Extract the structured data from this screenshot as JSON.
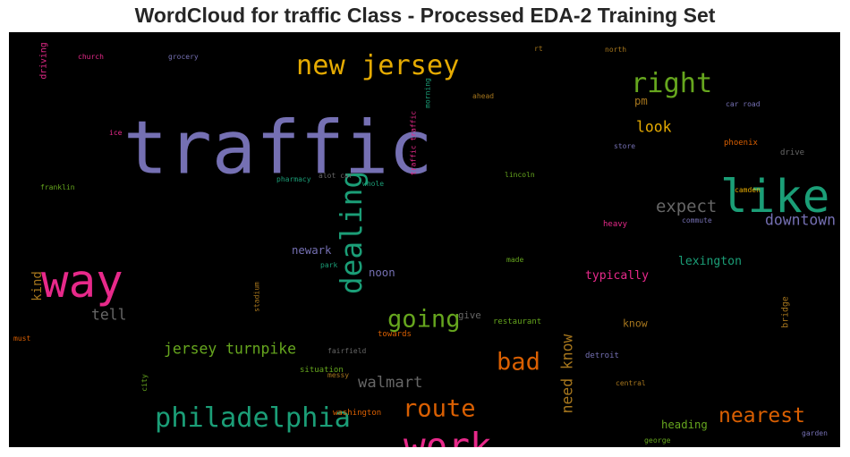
{
  "chart_data": {
    "type": "wordcloud",
    "title": "WordCloud for traffic Class - Processed EDA-2 Training Set",
    "background": "#000000",
    "words": [
      {
        "text": "traffic",
        "weight": 1.0,
        "color": "#7570b3",
        "vertical": false
      },
      {
        "text": "way",
        "weight": 0.62,
        "color": "#e7298a",
        "vertical": false
      },
      {
        "text": "like",
        "weight": 0.62,
        "color": "#1b9e77",
        "vertical": false
      },
      {
        "text": "work",
        "weight": 0.5,
        "color": "#e7298a",
        "vertical": false
      },
      {
        "text": "new jersey",
        "weight": 0.37,
        "color": "#e6ab02",
        "vertical": false
      },
      {
        "text": "right",
        "weight": 0.37,
        "color": "#66a61e",
        "vertical": false
      },
      {
        "text": "dealing",
        "weight": 0.4,
        "color": "#1b9e77",
        "vertical": true
      },
      {
        "text": "philadelphia",
        "weight": 0.37,
        "color": "#1b9e77",
        "vertical": false
      },
      {
        "text": "going",
        "weight": 0.33,
        "color": "#66a61e",
        "vertical": false
      },
      {
        "text": "route",
        "weight": 0.33,
        "color": "#d95f02",
        "vertical": false
      },
      {
        "text": "bad",
        "weight": 0.33,
        "color": "#d95f02",
        "vertical": false
      },
      {
        "text": "nearest",
        "weight": 0.28,
        "color": "#d95f02",
        "vertical": false
      },
      {
        "text": "expect",
        "weight": 0.23,
        "color": "#666666",
        "vertical": false
      },
      {
        "text": "downtown",
        "weight": 0.2,
        "color": "#7570b3",
        "vertical": false
      },
      {
        "text": "look",
        "weight": 0.2,
        "color": "#e6ab02",
        "vertical": false
      },
      {
        "text": "walmart",
        "weight": 0.21,
        "color": "#666666",
        "vertical": false
      },
      {
        "text": "jersey turnpike",
        "weight": 0.2,
        "color": "#66a61e",
        "vertical": false
      },
      {
        "text": "tell",
        "weight": 0.2,
        "color": "#666666",
        "vertical": false
      },
      {
        "text": "need know",
        "weight": 0.2,
        "color": "#a6761d",
        "vertical": true
      },
      {
        "text": "kind",
        "weight": 0.17,
        "color": "#a6761d",
        "vertical": true
      },
      {
        "text": "lexington",
        "weight": 0.16,
        "color": "#1b9e77",
        "vertical": false
      },
      {
        "text": "typically",
        "weight": 0.16,
        "color": "#e7298a",
        "vertical": false
      },
      {
        "text": "newark",
        "weight": 0.15,
        "color": "#7570b3",
        "vertical": false
      },
      {
        "text": "noon",
        "weight": 0.15,
        "color": "#7570b3",
        "vertical": false
      },
      {
        "text": "heading",
        "weight": 0.15,
        "color": "#66a61e",
        "vertical": false
      },
      {
        "text": "pm",
        "weight": 0.15,
        "color": "#a6761d",
        "vertical": false
      },
      {
        "text": "know",
        "weight": 0.14,
        "color": "#a6761d",
        "vertical": false
      },
      {
        "text": "give",
        "weight": 0.13,
        "color": "#666666",
        "vertical": false
      },
      {
        "text": "driving",
        "weight": 0.12,
        "color": "#e7298a",
        "vertical": true
      },
      {
        "text": "bridge",
        "weight": 0.12,
        "color": "#a6761d",
        "vertical": true
      },
      {
        "text": "phoenix",
        "weight": 0.11,
        "color": "#d95f02",
        "vertical": false
      },
      {
        "text": "heavy",
        "weight": 0.11,
        "color": "#e7298a",
        "vertical": false
      },
      {
        "text": "drive",
        "weight": 0.11,
        "color": "#666666",
        "vertical": false
      },
      {
        "text": "detroit",
        "weight": 0.11,
        "color": "#7570b3",
        "vertical": false
      },
      {
        "text": "restaurant",
        "weight": 0.11,
        "color": "#66a61e",
        "vertical": false
      },
      {
        "text": "towards",
        "weight": 0.11,
        "color": "#d95f02",
        "vertical": false
      },
      {
        "text": "situation",
        "weight": 0.11,
        "color": "#66a61e",
        "vertical": false
      },
      {
        "text": "washington",
        "weight": 0.11,
        "color": "#d95f02",
        "vertical": false
      },
      {
        "text": "george",
        "weight": 0.1,
        "color": "#66a61e",
        "vertical": false
      },
      {
        "text": "city",
        "weight": 0.1,
        "color": "#66a61e",
        "vertical": true
      },
      {
        "text": "traffic traffic",
        "weight": 0.08,
        "color": "#e7298a",
        "vertical": true
      },
      {
        "text": "morning",
        "weight": 0.07,
        "color": "#1b9e77",
        "vertical": true
      },
      {
        "text": "rt",
        "weight": 0.09,
        "color": "#a6761d",
        "vertical": false
      },
      {
        "text": "church",
        "weight": 0.07,
        "color": "#e7298a",
        "vertical": false
      },
      {
        "text": "grocery",
        "weight": 0.07,
        "color": "#7570b3",
        "vertical": false
      },
      {
        "text": "north",
        "weight": 0.07,
        "color": "#a6761d",
        "vertical": false
      },
      {
        "text": "ahead",
        "weight": 0.07,
        "color": "#a6761d",
        "vertical": false
      },
      {
        "text": "car road",
        "weight": 0.07,
        "color": "#7570b3",
        "vertical": false
      },
      {
        "text": "ice",
        "weight": 0.07,
        "color": "#e7298a",
        "vertical": false
      },
      {
        "text": "store",
        "weight": 0.07,
        "color": "#7570b3",
        "vertical": false
      },
      {
        "text": "franklin",
        "weight": 0.07,
        "color": "#66a61e",
        "vertical": false
      },
      {
        "text": "pharmacy",
        "weight": 0.07,
        "color": "#1b9e77",
        "vertical": false
      },
      {
        "text": "alot car",
        "weight": 0.07,
        "color": "#666666",
        "vertical": false
      },
      {
        "text": "whole",
        "weight": 0.07,
        "color": "#1b9e77",
        "vertical": false
      },
      {
        "text": "lincoln",
        "weight": 0.07,
        "color": "#66a61e",
        "vertical": false
      },
      {
        "text": "camden",
        "weight": 0.07,
        "color": "#e6ab02",
        "vertical": false
      },
      {
        "text": "commute",
        "weight": 0.07,
        "color": "#7570b3",
        "vertical": false
      },
      {
        "text": "park",
        "weight": 0.07,
        "color": "#1b9e77",
        "vertical": false
      },
      {
        "text": "made",
        "weight": 0.07,
        "color": "#66a61e",
        "vertical": false
      },
      {
        "text": "stadium",
        "weight": 0.06,
        "color": "#a6761d",
        "vertical": true
      },
      {
        "text": "must",
        "weight": 0.07,
        "color": "#d95f02",
        "vertical": false
      },
      {
        "text": "fairfield",
        "weight": 0.07,
        "color": "#666666",
        "vertical": false
      },
      {
        "text": "messy",
        "weight": 0.07,
        "color": "#a6761d",
        "vertical": false
      },
      {
        "text": "central",
        "weight": 0.07,
        "color": "#a6761d",
        "vertical": false
      },
      {
        "text": "garden",
        "weight": 0.07,
        "color": "#7570b3",
        "vertical": false
      }
    ]
  }
}
